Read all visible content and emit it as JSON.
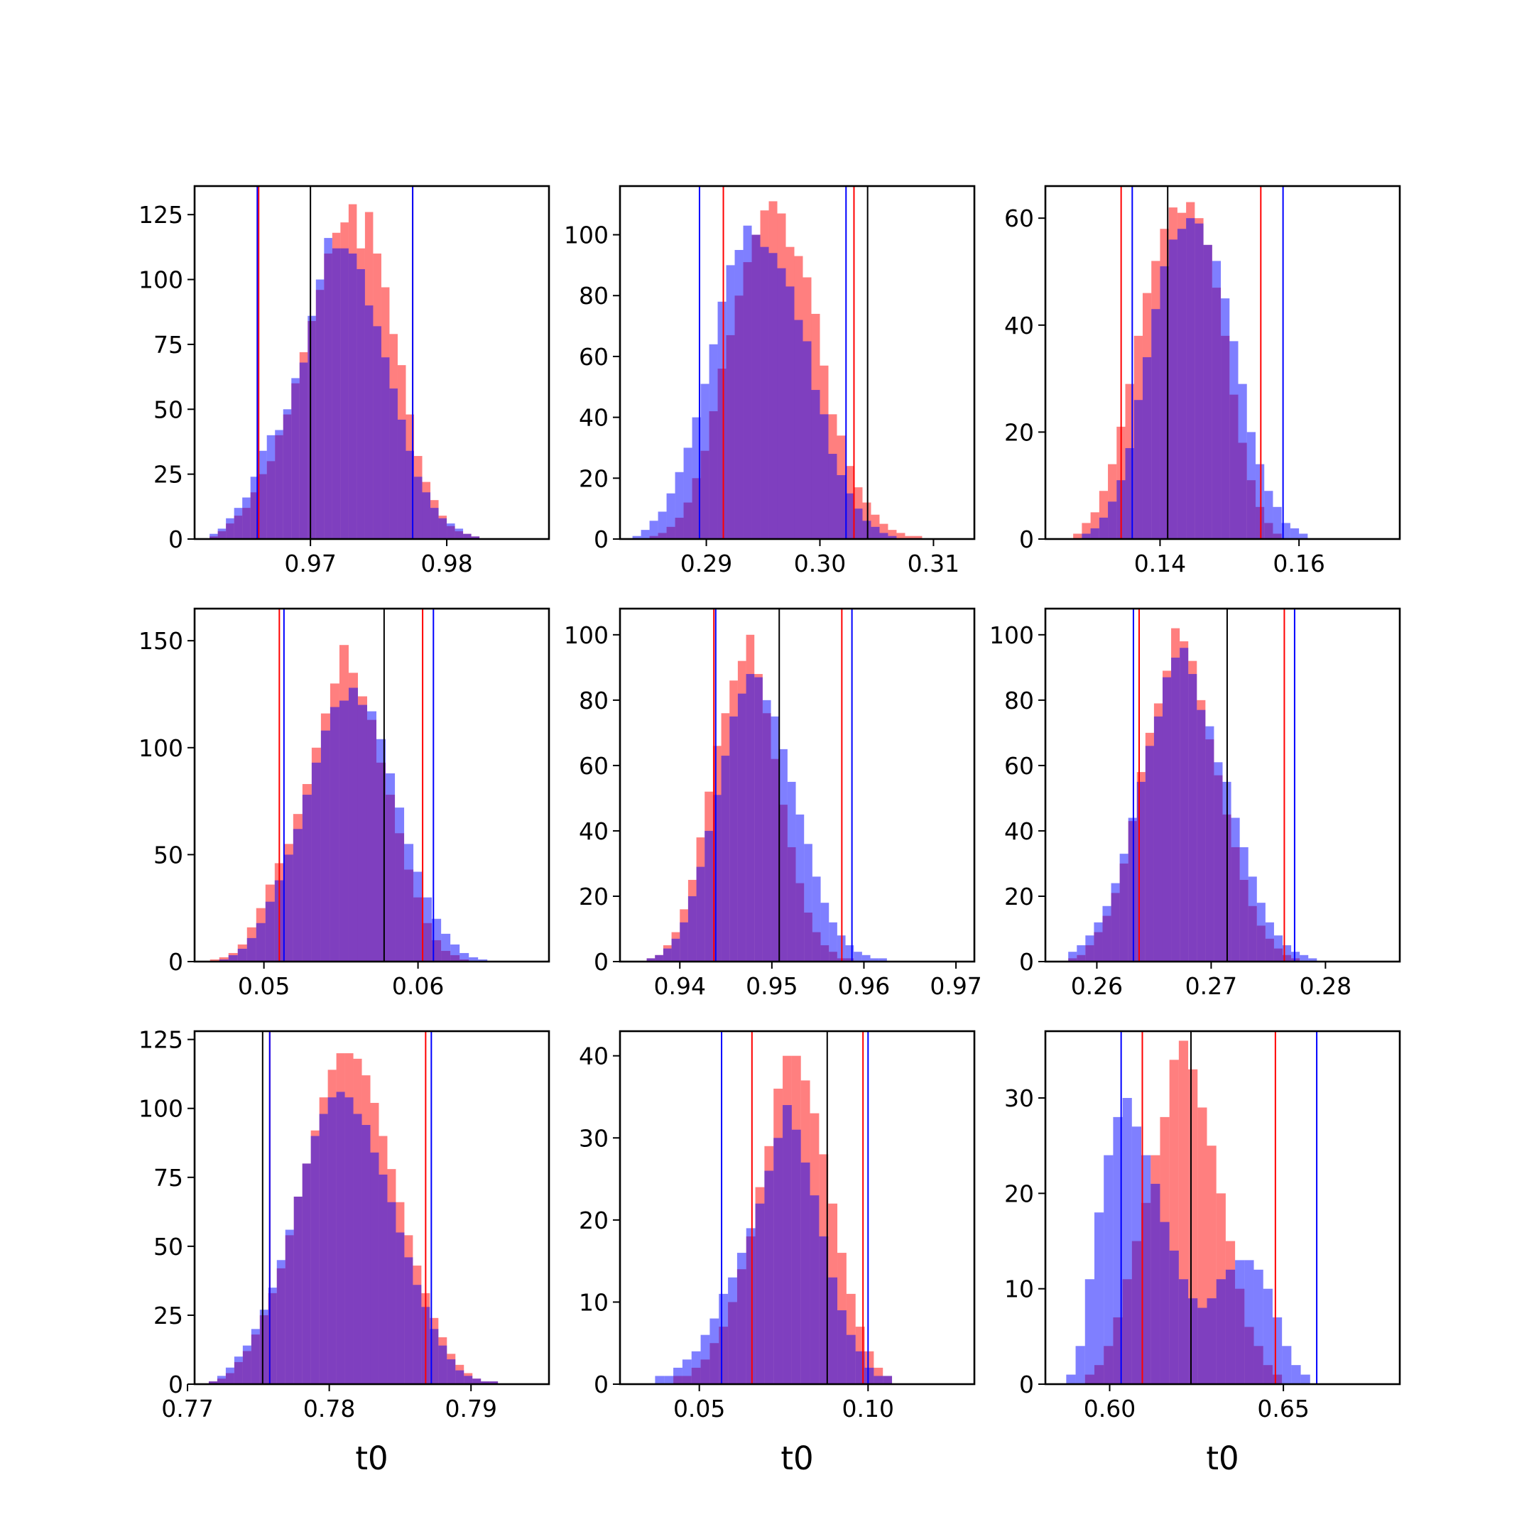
{
  "figure": {
    "background": "#ffffff"
  },
  "colors": {
    "red_hist": "#ff0000",
    "blue_hist": "#0000ff",
    "red_line": "#ff0000",
    "blue_line": "#0000ff",
    "truth_line": "#000000",
    "hist_alpha": 0.5
  },
  "chart_data": [
    {
      "type": "histogram",
      "xlabel": "",
      "xlim": [
        0.9615,
        0.9875
      ],
      "ylim": [
        0,
        136
      ],
      "xticks": [
        0.97,
        0.98
      ],
      "xtick_labels": [
        "0.97",
        "0.98"
      ],
      "yticks": [
        0,
        25,
        50,
        75,
        100,
        125
      ],
      "ytick_labels": [
        "0",
        "25",
        "50",
        "75",
        "100",
        "125"
      ],
      "bin_width": 0.0006,
      "red": {
        "start": 0.9626,
        "counts": [
          1,
          3,
          6,
          9,
          12,
          18,
          25,
          30,
          40,
          48,
          60,
          72,
          84,
          96,
          110,
          118,
          122,
          129,
          112,
          126,
          110,
          97,
          79,
          67,
          48,
          32,
          22,
          15,
          9,
          5,
          3,
          2,
          1
        ]
      },
      "blue": {
        "start": 0.9626,
        "counts": [
          2,
          4,
          8,
          12,
          16,
          24,
          34,
          40,
          42,
          50,
          62,
          68,
          86,
          100,
          116,
          112,
          112,
          110,
          104,
          90,
          82,
          70,
          58,
          46,
          34,
          24,
          18,
          12,
          8,
          6,
          4,
          2,
          1
        ]
      },
      "lines": {
        "truth": 0.97,
        "red": [
          0.9662,
          0.9775
        ],
        "blue": [
          0.9661,
          0.9775
        ]
      }
    },
    {
      "type": "histogram",
      "xlabel": "",
      "xlim": [
        0.2824,
        0.3136
      ],
      "ylim": [
        0,
        116
      ],
      "xticks": [
        0.29,
        0.3,
        0.31
      ],
      "xtick_labels": [
        "0.29",
        "0.30",
        "0.31"
      ],
      "yticks": [
        0,
        20,
        40,
        60,
        80,
        100
      ],
      "ytick_labels": [
        "0",
        "20",
        "40",
        "60",
        "80",
        "100"
      ],
      "bin_width": 0.00075,
      "red": {
        "start": 0.2835,
        "counts": [
          0,
          0,
          1,
          2,
          4,
          7,
          12,
          20,
          29,
          42,
          56,
          67,
          80,
          91,
          100,
          108,
          111,
          107,
          96,
          93,
          86,
          74,
          57,
          41,
          34,
          24,
          17,
          12,
          8,
          5,
          3,
          2,
          1,
          1
        ]
      },
      "blue": {
        "start": 0.2835,
        "counts": [
          1,
          3,
          6,
          9,
          15,
          22,
          30,
          40,
          51,
          64,
          78,
          90,
          95,
          103,
          100,
          96,
          94,
          89,
          83,
          72,
          65,
          49,
          41,
          28,
          21,
          15,
          10,
          6,
          4,
          2,
          1,
          0,
          0,
          0
        ]
      },
      "lines": {
        "truth": 0.3042,
        "red": [
          0.2915,
          0.303
        ],
        "blue": [
          0.2894,
          0.3023
        ]
      }
    },
    {
      "type": "histogram",
      "xlabel": "",
      "xlim": [
        0.1235,
        0.1745
      ],
      "ylim": [
        0,
        66
      ],
      "xticks": [
        0.14,
        0.16
      ],
      "xtick_labels": [
        "0.14",
        "0.16"
      ],
      "yticks": [
        0,
        20,
        40,
        60
      ],
      "ytick_labels": [
        "0",
        "20",
        "40",
        "60"
      ],
      "bin_width": 0.00125,
      "red": {
        "start": 0.1275,
        "counts": [
          1,
          3,
          5,
          9,
          14,
          21,
          29,
          38,
          46,
          52,
          58,
          62,
          61,
          63,
          60,
          55,
          47,
          38,
          27,
          18,
          11,
          6,
          3,
          1,
          0,
          0,
          0,
          0,
          0,
          0,
          0,
          0
        ]
      },
      "blue": {
        "start": 0.1275,
        "counts": [
          0,
          1,
          2,
          4,
          7,
          11,
          17,
          26,
          34,
          43,
          51,
          56,
          58,
          60,
          59,
          55,
          52,
          45,
          37,
          29,
          20,
          14,
          9,
          6,
          3,
          2,
          1,
          0,
          0,
          0,
          0,
          0
        ]
      },
      "lines": {
        "truth": 0.1411,
        "red": [
          0.1344,
          0.1545
        ],
        "blue": [
          0.136,
          0.1577
        ]
      }
    },
    {
      "type": "histogram",
      "xlabel": "",
      "xlim": [
        0.0455,
        0.0685
      ],
      "ylim": [
        0,
        165
      ],
      "xticks": [
        0.05,
        0.06
      ],
      "xtick_labels": [
        "0.05",
        "0.06"
      ],
      "yticks": [
        0,
        50,
        100,
        150
      ],
      "ytick_labels": [
        "0",
        "50",
        "100",
        "150"
      ],
      "bin_width": 0.0006,
      "red": {
        "start": 0.0465,
        "counts": [
          1,
          2,
          4,
          8,
          16,
          25,
          36,
          46,
          55,
          69,
          83,
          100,
          116,
          130,
          148,
          135,
          124,
          113,
          93,
          78,
          60,
          43,
          30,
          18,
          10,
          5,
          3,
          1,
          0,
          0,
          0,
          0
        ]
      },
      "blue": {
        "start": 0.0465,
        "counts": [
          0,
          1,
          3,
          6,
          11,
          18,
          28,
          38,
          50,
          62,
          78,
          93,
          108,
          119,
          122,
          128,
          120,
          117,
          104,
          88,
          72,
          55,
          42,
          30,
          20,
          13,
          8,
          4,
          2,
          1,
          0,
          0
        ]
      },
      "lines": {
        "truth": 0.0578,
        "red": [
          0.051,
          0.0603
        ],
        "blue": [
          0.0513,
          0.061
        ]
      }
    },
    {
      "type": "histogram",
      "xlabel": "",
      "xlim": [
        0.9335,
        0.972
      ],
      "ylim": [
        0,
        108
      ],
      "xticks": [
        0.94,
        0.95,
        0.96,
        0.97
      ],
      "xtick_labels": [
        "0.94",
        "0.95",
        "0.96",
        "0.97"
      ],
      "bin_width": 0.0009,
      "yticks": [
        0,
        20,
        40,
        60,
        80,
        100
      ],
      "ytick_labels": [
        "0",
        "20",
        "40",
        "60",
        "80",
        "100"
      ],
      "red": {
        "start": 0.9355,
        "counts": [
          0,
          1,
          2,
          5,
          9,
          16,
          25,
          38,
          52,
          66,
          76,
          86,
          92,
          100,
          88,
          76,
          62,
          48,
          35,
          24,
          15,
          9,
          5,
          3,
          1,
          1,
          0,
          0,
          0,
          0,
          0,
          0,
          0,
          0,
          0,
          0
        ]
      },
      "blue": {
        "start": 0.9355,
        "counts": [
          0,
          1,
          2,
          4,
          7,
          12,
          20,
          29,
          40,
          51,
          63,
          75,
          82,
          88,
          87,
          80,
          75,
          65,
          55,
          45,
          36,
          26,
          18,
          12,
          8,
          5,
          3,
          2,
          1,
          1,
          0,
          0,
          0,
          0,
          0,
          0
        ]
      },
      "lines": {
        "truth": 0.9508,
        "red": [
          0.9437,
          0.9576
        ],
        "blue": [
          0.9439,
          0.9587
        ]
      }
    },
    {
      "type": "histogram",
      "xlabel": "",
      "xlim": [
        0.2555,
        0.2865
      ],
      "ylim": [
        0,
        108
      ],
      "xticks": [
        0.26,
        0.27,
        0.28
      ],
      "xtick_labels": [
        "0.26",
        "0.27",
        "0.28"
      ],
      "yticks": [
        0,
        20,
        40,
        60,
        80,
        100
      ],
      "ytick_labels": [
        "0",
        "20",
        "40",
        "60",
        "80",
        "100"
      ],
      "bin_width": 0.00075,
      "red": {
        "start": 0.2575,
        "counts": [
          1,
          2,
          5,
          9,
          14,
          21,
          30,
          43,
          58,
          70,
          79,
          89,
          102,
          98,
          92,
          80,
          68,
          57,
          45,
          35,
          25,
          17,
          11,
          7,
          4,
          2,
          1,
          0,
          0,
          0,
          0,
          0,
          0,
          0,
          0,
          0,
          0
        ]
      },
      "blue": {
        "start": 0.2575,
        "counts": [
          3,
          5,
          8,
          12,
          17,
          24,
          33,
          44,
          55,
          66,
          75,
          87,
          93,
          96,
          88,
          77,
          72,
          61,
          55,
          44,
          35,
          26,
          18,
          12,
          8,
          5,
          3,
          2,
          1,
          0,
          0,
          0,
          0,
          0,
          0,
          0,
          0
        ]
      },
      "lines": {
        "truth": 0.2714,
        "red": [
          0.2637,
          0.2764
        ],
        "blue": [
          0.2632,
          0.2773
        ]
      }
    },
    {
      "type": "histogram",
      "xlabel": "t0",
      "xlim": [
        0.7705,
        0.7955
      ],
      "ylim": [
        0,
        128
      ],
      "xticks": [
        0.77,
        0.78,
        0.79
      ],
      "xtick_labels": [
        "0.77",
        "0.78",
        "0.79"
      ],
      "yticks": [
        0,
        25,
        50,
        75,
        100,
        125
      ],
      "ytick_labels": [
        "0",
        "25",
        "50",
        "75",
        "100",
        "125"
      ],
      "bin_width": 0.0006,
      "red": {
        "start": 0.7715,
        "counts": [
          1,
          2,
          4,
          8,
          12,
          18,
          25,
          33,
          42,
          54,
          68,
          80,
          92,
          104,
          114,
          120,
          120,
          118,
          112,
          102,
          90,
          78,
          66,
          54,
          43,
          33,
          24,
          17,
          11,
          7,
          4,
          2,
          1,
          1
        ]
      },
      "blue": {
        "start": 0.7715,
        "counts": [
          1,
          3,
          6,
          10,
          14,
          20,
          27,
          35,
          45,
          56,
          68,
          80,
          90,
          98,
          104,
          106,
          104,
          98,
          94,
          84,
          76,
          66,
          55,
          46,
          36,
          28,
          20,
          14,
          9,
          5,
          3,
          2,
          1,
          1
        ]
      },
      "lines": {
        "truth": 0.7753,
        "red": [
          0.7758,
          0.7868
        ],
        "blue": [
          0.7758,
          0.7872
        ]
      }
    },
    {
      "type": "histogram",
      "xlabel": "t0",
      "xlim": [
        0.0265,
        0.1315
      ],
      "ylim": [
        0,
        43
      ],
      "xticks": [
        0.05,
        0.1
      ],
      "xtick_labels": [
        "0.05",
        "0.10"
      ],
      "yticks": [
        0,
        10,
        20,
        30,
        40
      ],
      "ytick_labels": [
        "0",
        "10",
        "20",
        "30",
        "40"
      ],
      "bin_width": 0.0027,
      "red": {
        "start": 0.0315,
        "counts": [
          0,
          0,
          0,
          0,
          1,
          1,
          2,
          3,
          5,
          7,
          10,
          14,
          18,
          24,
          29,
          36,
          40,
          40,
          37,
          33,
          28,
          22,
          16,
          11,
          7,
          4,
          2,
          1,
          0,
          0,
          0,
          0
        ]
      },
      "blue": {
        "start": 0.0315,
        "counts": [
          0,
          0,
          1,
          1,
          2,
          3,
          4,
          6,
          8,
          11,
          13,
          16,
          19,
          22,
          26,
          30,
          34,
          31,
          27,
          23,
          18,
          13,
          9,
          6,
          4,
          2,
          1,
          1,
          0,
          0,
          0,
          0
        ]
      },
      "lines": {
        "truth": 0.0879,
        "red": [
          0.0656,
          0.0985
        ],
        "blue": [
          0.0566,
          0.1
        ]
      }
    },
    {
      "type": "histogram",
      "xlabel": "t0",
      "xlim": [
        0.5815,
        0.6835
      ],
      "ylim": [
        0,
        37
      ],
      "xticks": [
        0.6,
        0.65
      ],
      "xtick_labels": [
        "0.60",
        "0.65"
      ],
      "yticks": [
        0,
        10,
        20,
        30
      ],
      "ytick_labels": [
        "0",
        "10",
        "20",
        "30"
      ],
      "bin_width": 0.0027,
      "red": {
        "start": 0.5875,
        "counts": [
          0,
          0,
          1,
          2,
          4,
          7,
          11,
          15,
          19,
          24,
          28,
          34,
          36,
          33,
          29,
          25,
          20,
          15,
          10,
          6,
          4,
          2,
          1,
          0,
          0,
          0,
          0,
          0,
          0,
          0,
          0,
          0
        ]
      },
      "blue": {
        "start": 0.5875,
        "counts": [
          1,
          4,
          11,
          18,
          24,
          28,
          30,
          27,
          24,
          21,
          17,
          14,
          11,
          9,
          8,
          9,
          11,
          12,
          13,
          13,
          12,
          10,
          7,
          4,
          2,
          1,
          0,
          0,
          0,
          0,
          0,
          0
        ]
      },
      "lines": {
        "truth": 0.6234,
        "red": [
          0.6094,
          0.6477
        ],
        "blue": [
          0.6033,
          0.6596
        ]
      }
    }
  ]
}
